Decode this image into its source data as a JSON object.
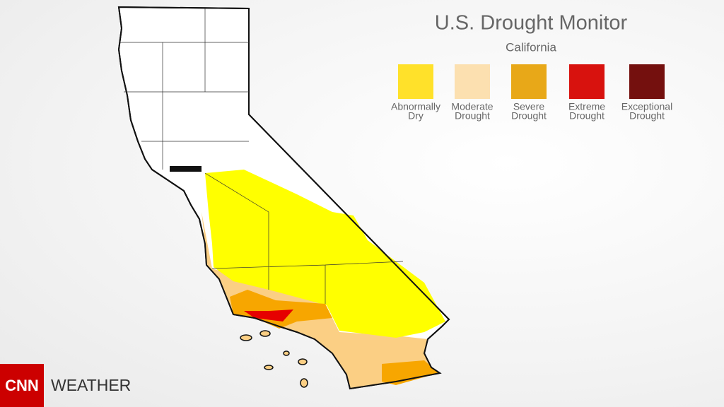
{
  "header": {
    "title": "U.S. Drought Monitor",
    "subtitle": "California"
  },
  "legend": [
    {
      "lines": [
        "Abnormally",
        "Dry"
      ],
      "color": "#ffe12a"
    },
    {
      "lines": [
        "Moderate",
        "Drought"
      ],
      "color": "#fce0b0"
    },
    {
      "lines": [
        "Severe",
        "Drought"
      ],
      "color": "#e8a818"
    },
    {
      "lines": [
        "Extreme",
        "Drought"
      ],
      "color": "#d8120e"
    },
    {
      "lines": [
        "Exceptional",
        "Drought"
      ],
      "color": "#74100e"
    }
  ],
  "branding": {
    "logo": "CNN",
    "section": "WEATHER"
  }
}
